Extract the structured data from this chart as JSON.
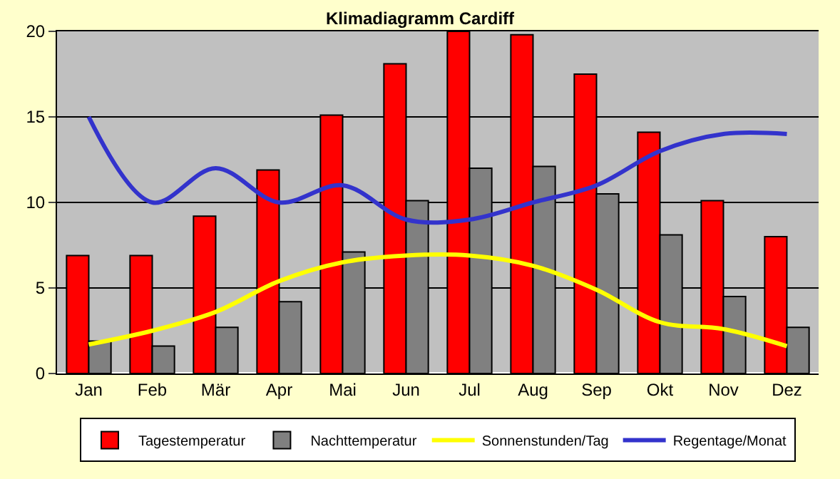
{
  "chart_data": {
    "type": "bar",
    "title": "Klimadiagramm Cardiff",
    "categories": [
      "Jan",
      "Feb",
      "Mär",
      "Apr",
      "Mai",
      "Jun",
      "Jul",
      "Aug",
      "Sep",
      "Okt",
      "Nov",
      "Dez"
    ],
    "series": [
      {
        "name": "Tagestemperatur",
        "color": "#ff0000",
        "values": [
          6.9,
          6.9,
          9.2,
          11.9,
          15.1,
          18.1,
          20,
          19.8,
          17.5,
          14.1,
          10.1,
          8.0
        ]
      },
      {
        "name": "Nachttemperatur",
        "color": "#808080",
        "values": [
          1.9,
          1.6,
          2.7,
          4.2,
          7.1,
          10.1,
          12.0,
          12.1,
          10.5,
          8.1,
          4.5,
          2.7
        ]
      },
      {
        "name": "Sonnenstunden/Tag",
        "type": "line",
        "color": "#ffff00",
        "values": [
          1.7,
          2.5,
          3.6,
          5.4,
          6.5,
          6.9,
          6.9,
          6.3,
          4.9,
          3.0,
          2.6,
          1.6
        ]
      },
      {
        "name": "Regentage/Monat",
        "type": "line",
        "color": "#3333cc",
        "values": [
          15,
          10,
          12,
          10,
          11,
          9,
          9,
          10,
          11,
          13,
          14,
          14
        ]
      }
    ],
    "ylim": [
      0,
      20
    ],
    "yticks": [
      0,
      5,
      10,
      15,
      20
    ],
    "grid": "y",
    "legend": "bottom",
    "marker": "none"
  }
}
